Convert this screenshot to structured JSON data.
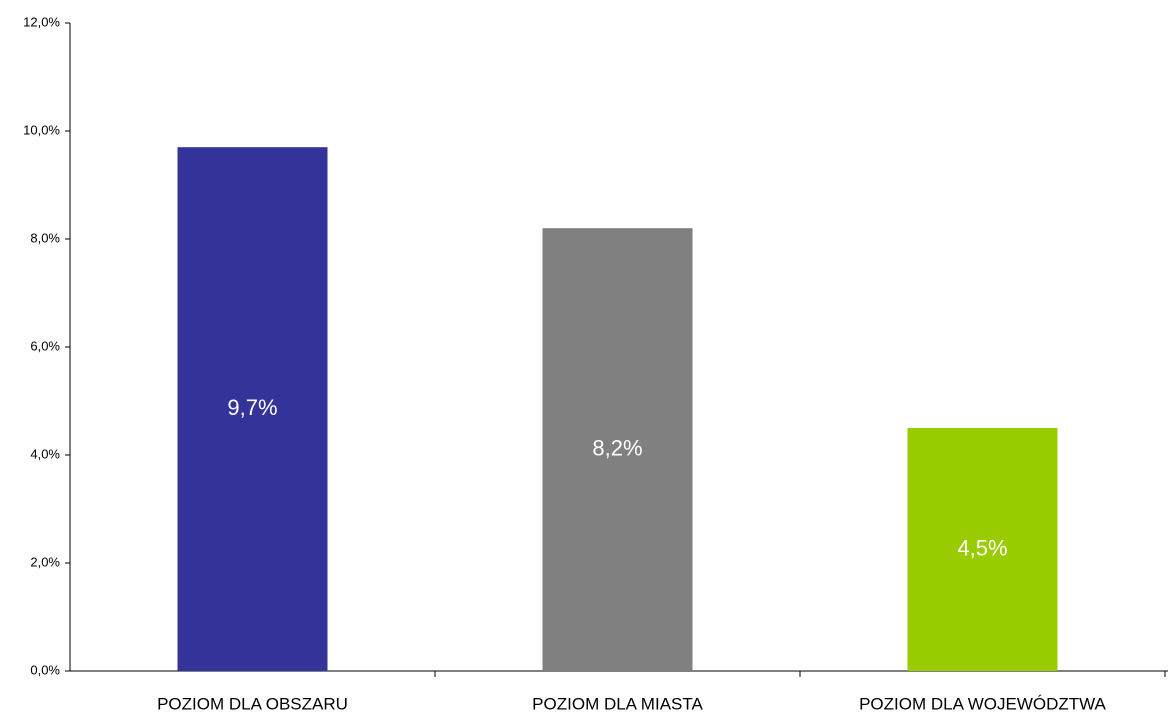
{
  "chart_data": {
    "type": "bar",
    "categories": [
      "POZIOM DLA OBSZARU",
      "POZIOM DLA MIASTA",
      "POZIOM DLA WOJEWÓDZTWA"
    ],
    "values": [
      9.7,
      8.2,
      4.5
    ],
    "value_labels": [
      "9,7%",
      "8,2%",
      "4,5%"
    ],
    "colors": [
      "#333399",
      "#808080",
      "#99cc00"
    ],
    "ylim": [
      0,
      12
    ],
    "yticks": [
      {
        "value": 0,
        "label": "0,0%"
      },
      {
        "value": 2,
        "label": "2,0%"
      },
      {
        "value": 4,
        "label": "4,0%"
      },
      {
        "value": 6,
        "label": "6,0%"
      },
      {
        "value": 8,
        "label": "8,0%"
      },
      {
        "value": 10,
        "label": "10,0%"
      },
      {
        "value": 12,
        "label": "12,0%"
      }
    ],
    "grid": false
  }
}
